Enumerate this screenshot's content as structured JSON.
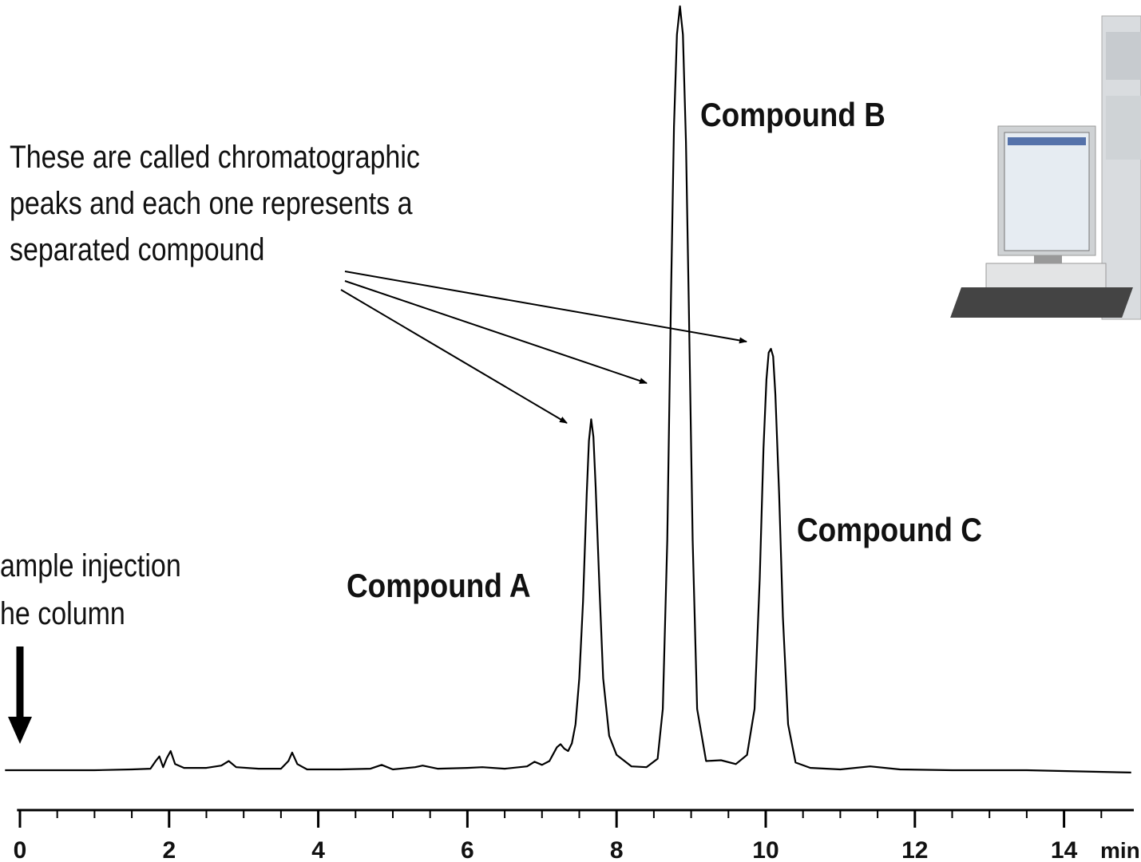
{
  "chart_data": {
    "type": "line",
    "x_label": "min",
    "annotations": [
      "These are called chromatographic",
      "peaks and each one represents a",
      "separated compound",
      "ample injection",
      "he column",
      "Compound A",
      "Compound B",
      "Compound C"
    ],
    "x": [
      -0.2,
      0,
      0.5,
      1,
      1.5,
      1.75,
      1.82,
      1.87,
      1.92,
      1.97,
      2.02,
      2.08,
      2.2,
      2.5,
      2.7,
      2.8,
      2.9,
      3.2,
      3.5,
      3.6,
      3.65,
      3.72,
      3.85,
      4.3,
      4.7,
      4.85,
      5.0,
      5.3,
      5.4,
      5.6,
      6.0,
      6.2,
      6.5,
      6.8,
      6.9,
      7.0,
      7.1,
      7.2,
      7.25,
      7.3,
      7.35,
      7.4,
      7.45,
      7.5,
      7.55,
      7.6,
      7.63,
      7.66,
      7.69,
      7.72,
      7.77,
      7.82,
      7.9,
      8.0,
      8.2,
      8.4,
      8.55,
      8.62,
      8.68,
      8.73,
      8.77,
      8.81,
      8.85,
      8.89,
      8.93,
      8.97,
      9.02,
      9.08,
      9.2,
      9.4,
      9.6,
      9.75,
      9.85,
      9.92,
      9.97,
      10.01,
      10.04,
      10.07,
      10.1,
      10.13,
      10.18,
      10.23,
      10.3,
      10.4,
      10.6,
      11.0,
      11.4,
      11.8,
      12.5,
      13.5,
      14.9
    ],
    "values": [
      0,
      0,
      0,
      0,
      0.1,
      0.2,
      1.2,
      1.8,
      0.4,
      1.6,
      2.5,
      0.8,
      0.3,
      0.3,
      0.6,
      1.2,
      0.4,
      0.2,
      0.2,
      1.2,
      2.3,
      0.8,
      0.1,
      0.1,
      0.2,
      0.7,
      0.1,
      0.4,
      0.6,
      0.2,
      0.3,
      0.4,
      0.2,
      0.5,
      1.1,
      0.7,
      1.2,
      3.0,
      3.4,
      2.8,
      2.5,
      3.5,
      6,
      12,
      22,
      36,
      43,
      45.8,
      43.5,
      37,
      24,
      12,
      4.5,
      2,
      0.5,
      0.4,
      1.5,
      8,
      30,
      62,
      84,
      96,
      99.7,
      96,
      82,
      60,
      30,
      8,
      1.2,
      1.3,
      0.8,
      2,
      8,
      25,
      42,
      51,
      54.5,
      55,
      54,
      49,
      36,
      20,
      6,
      1,
      0.3,
      0.1,
      0.5,
      0.1,
      0,
      0,
      -0.3
    ],
    "color": "#000000",
    "xlim": [
      -0.2,
      15.0
    ],
    "ylim": [
      0,
      100
    ],
    "xticks": [
      0,
      2,
      4,
      6,
      8,
      10,
      12,
      14
    ],
    "xminor_ticks": [
      0.5,
      1,
      1.5,
      2.5,
      3,
      3.5,
      4.5,
      5,
      5.5,
      6.5,
      7,
      7.5,
      8.5,
      9,
      9.5,
      10.5,
      11,
      11.5,
      12.5,
      13,
      13.5,
      14.5
    ]
  }
}
